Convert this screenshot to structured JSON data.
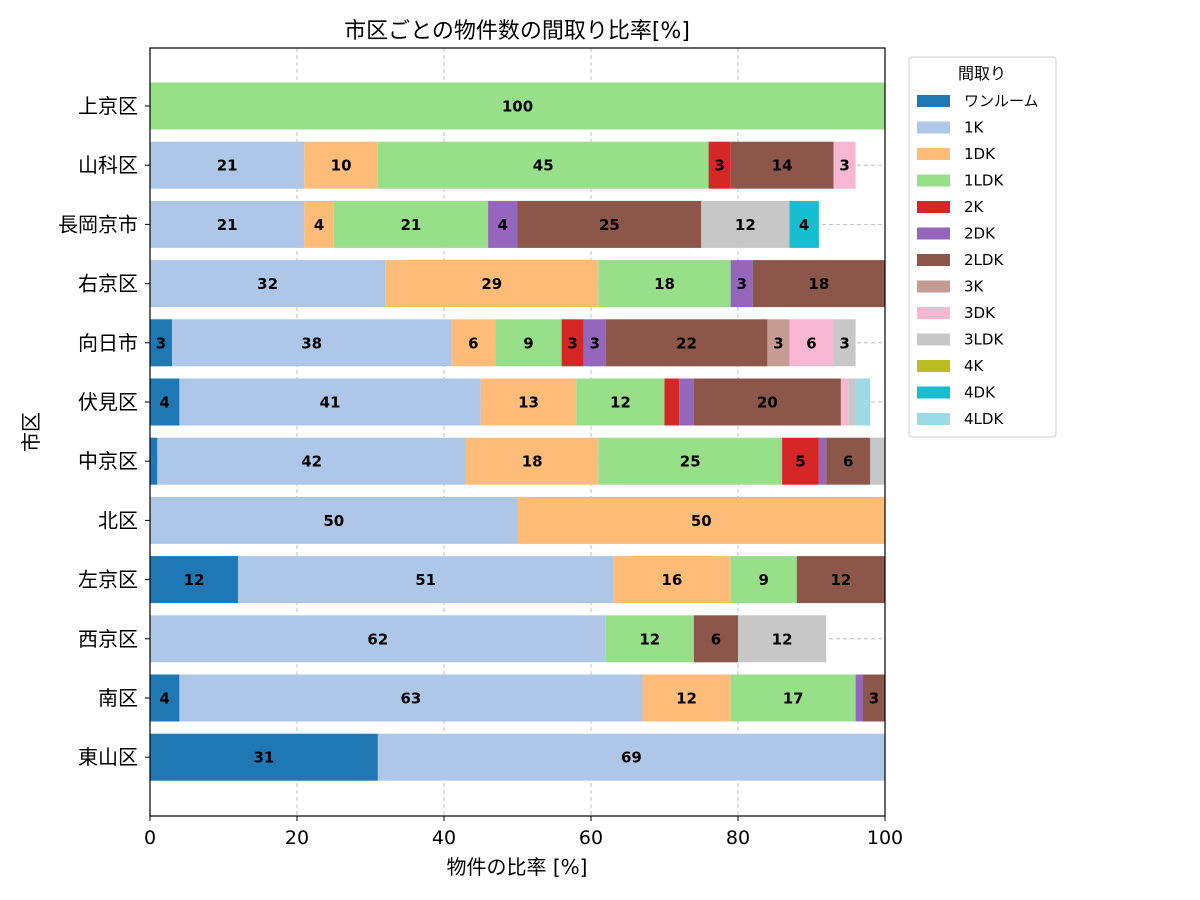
{
  "chart_data": {
    "type": "bar",
    "orientation": "horizontal",
    "stacked": true,
    "title": "市区ごとの物件数の間取り比率[%]",
    "xlabel": "物件の比率 [%]",
    "ylabel": "市区",
    "xlim": [
      0,
      100
    ],
    "xticks": [
      "0",
      "20",
      "40",
      "60",
      "80",
      "100"
    ],
    "grid": true,
    "legend_title": "間取り",
    "legend_position": "outside-right",
    "categories": [
      "上京区",
      "山科区",
      "長岡京市",
      "右京区",
      "向日市",
      "伏見区",
      "中京区",
      "北区",
      "左京区",
      "西京区",
      "南区",
      "東山区"
    ],
    "series": [
      {
        "name": "ワンルーム",
        "color": "#1f77b4",
        "values": [
          0,
          0,
          0,
          0,
          3,
          4,
          1,
          0,
          12,
          0,
          4,
          31
        ]
      },
      {
        "name": "1K",
        "color": "#aec7e8",
        "values": [
          0,
          21,
          21,
          32,
          38,
          41,
          42,
          50,
          51,
          62,
          63,
          69
        ]
      },
      {
        "name": "1DK",
        "color": "#ffbb78",
        "values": [
          0,
          10,
          4,
          29,
          6,
          13,
          18,
          50,
          16,
          0,
          12,
          0
        ]
      },
      {
        "name": "1LDK",
        "color": "#98df8a",
        "values": [
          100,
          45,
          21,
          18,
          9,
          12,
          25,
          0,
          9,
          12,
          17,
          0
        ]
      },
      {
        "name": "2K",
        "color": "#d62728",
        "values": [
          0,
          3,
          0,
          0,
          3,
          2,
          5,
          0,
          0,
          0,
          0,
          0
        ]
      },
      {
        "name": "2DK",
        "color": "#9467bd",
        "values": [
          0,
          0,
          4,
          3,
          3,
          2,
          1,
          0,
          0,
          0,
          1,
          0
        ]
      },
      {
        "name": "2LDK",
        "color": "#8c564b",
        "values": [
          0,
          14,
          25,
          18,
          22,
          20,
          6,
          0,
          12,
          6,
          3,
          0
        ]
      },
      {
        "name": "3K",
        "color": "#c49c94",
        "values": [
          0,
          0,
          0,
          0,
          3,
          0,
          0,
          0,
          0,
          0,
          0,
          0
        ]
      },
      {
        "name": "3DK",
        "color": "#f7b6d2",
        "values": [
          0,
          3,
          0,
          0,
          6,
          1,
          0,
          0,
          0,
          0,
          0,
          0
        ]
      },
      {
        "name": "3LDK",
        "color": "#c7c7c7",
        "values": [
          0,
          0,
          12,
          0,
          3,
          1,
          2,
          0,
          0,
          12,
          0,
          0
        ]
      },
      {
        "name": "4K",
        "color": "#bcbd22",
        "values": [
          0,
          0,
          0,
          0,
          0,
          0,
          0,
          0,
          0,
          0,
          0,
          0
        ]
      },
      {
        "name": "4DK",
        "color": "#17becf",
        "values": [
          0,
          0,
          4,
          0,
          0,
          0,
          0,
          0,
          0,
          0,
          0,
          0
        ]
      },
      {
        "name": "4LDK",
        "color": "#9edae5",
        "values": [
          0,
          0,
          0,
          0,
          0,
          2,
          0,
          0,
          0,
          0,
          0,
          0
        ]
      }
    ]
  }
}
